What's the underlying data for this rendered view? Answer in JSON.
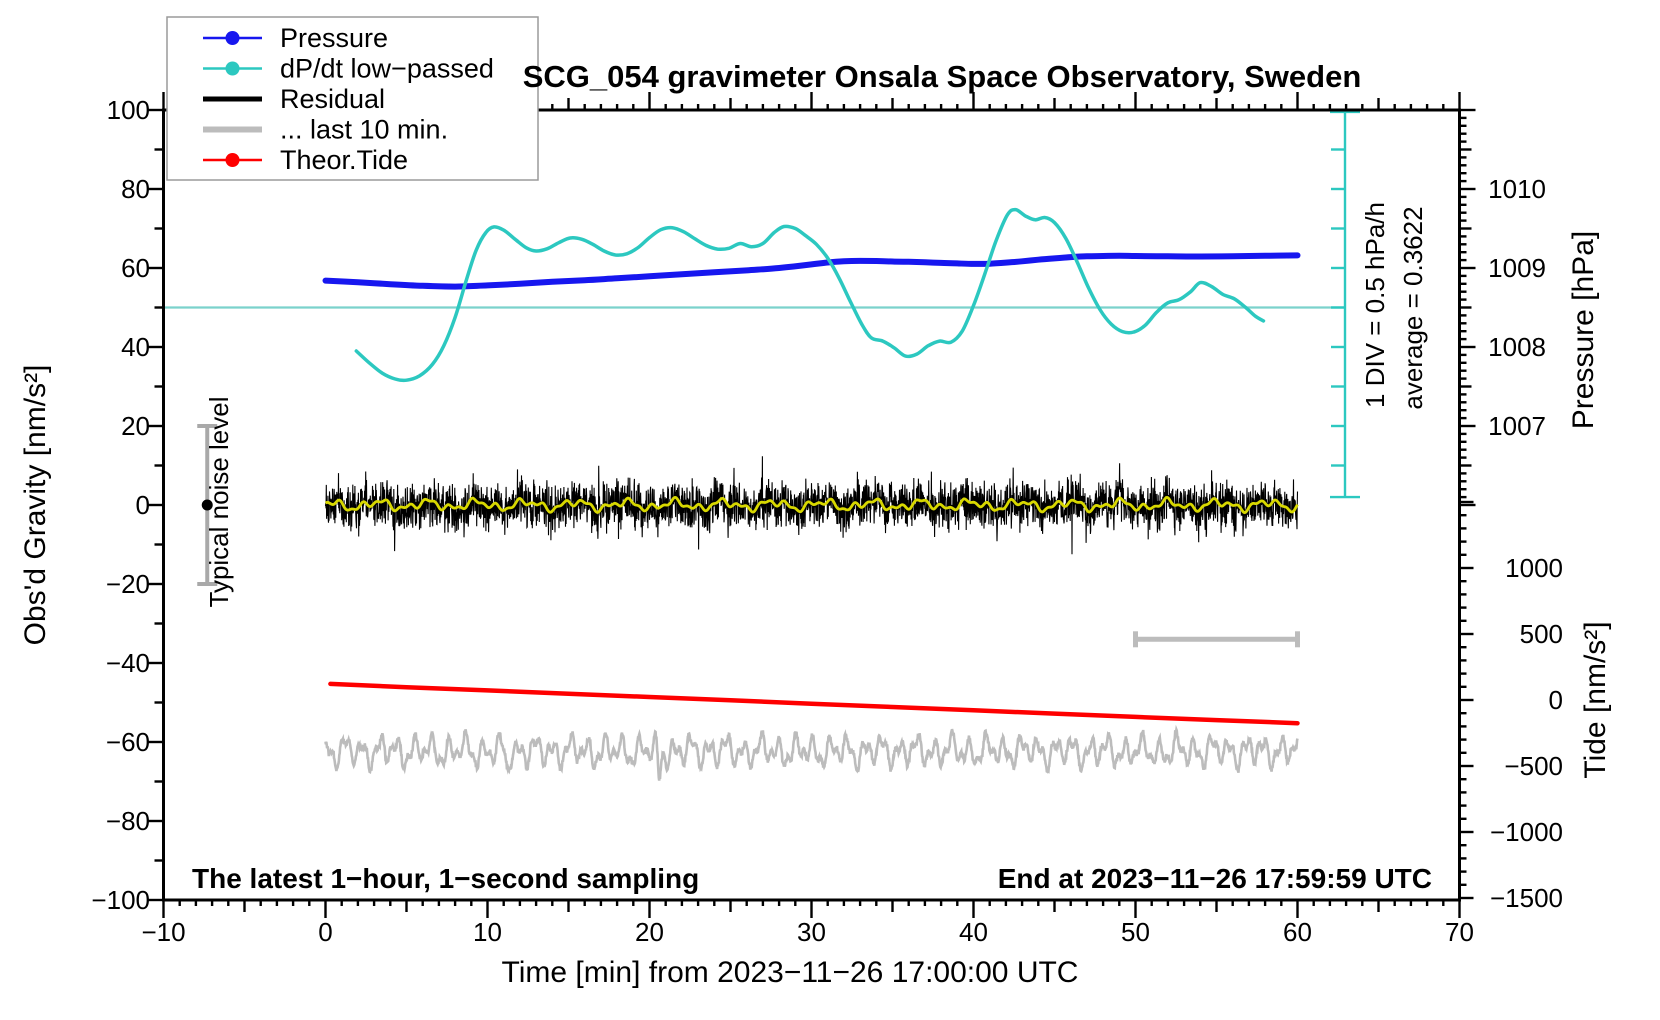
{
  "title": "SCG_054 gravimeter Onsala Space Observatory, Sweden",
  "notes": {
    "bottom_left": "The latest 1−hour, 1−second sampling",
    "bottom_right": "End at 2023−11−26 17:59:59 UTC"
  },
  "annotations": {
    "noise_label": "Typical noise level",
    "div_label": "1 DIV = 0.5 hPa/h",
    "avg_label": "average = 0.3622"
  },
  "legend": {
    "items": [
      {
        "label": "Pressure",
        "color": "#1717ef",
        "lw": 2.5,
        "dot": true
      },
      {
        "label": "dP/dt low−passed",
        "color": "#2cc8c0",
        "lw": 2.5,
        "dot": true
      },
      {
        "label": "Residual",
        "color": "#000000",
        "lw": 5,
        "dot": false
      },
      {
        "label": "... last 10 min.",
        "color": "#bcbcbc",
        "lw": 6,
        "dot": false
      },
      {
        "label": "Theor.Tide",
        "color": "#fe0000",
        "lw": 2.5,
        "dot": true
      }
    ]
  },
  "axes": {
    "x": {
      "label": "Time [min] from 2023−11−26 17:00:00 UTC",
      "min": -10,
      "max": 70,
      "minor": 1,
      "medium": 5,
      "major": 10,
      "tick_values": [
        -10,
        0,
        10,
        20,
        30,
        40,
        50,
        60,
        70
      ],
      "tick_labels": [
        "−10",
        "0",
        "10",
        "20",
        "30",
        "40",
        "50",
        "60",
        "70"
      ]
    },
    "y_left": {
      "label": "Obs'd Gravity [nm/s²]",
      "min": -100,
      "max": 100,
      "minor": 10,
      "major": 20,
      "tick_values": [
        -100,
        -80,
        -60,
        -40,
        -20,
        0,
        20,
        40,
        60,
        80,
        100
      ],
      "tick_labels": [
        "−100",
        "−80",
        "−60",
        "−40",
        "−20",
        "0",
        "20",
        "40",
        "60",
        "80",
        "100"
      ]
    },
    "pressure": {
      "label": "Pressure [hPa]",
      "min": 1006.0,
      "max": 1011.0,
      "minor": 0.1,
      "medium": 0.5,
      "major": 1.0,
      "tick_values": [
        1007,
        1008,
        1009,
        1010
      ],
      "tick_labels": [
        "1007",
        "1008",
        "1009",
        "1010"
      ]
    },
    "tide": {
      "label": "Tide [nm/s²]",
      "min": -1500,
      "max": 1500,
      "minor": 100,
      "major": 500,
      "tick_values": [
        1000,
        500,
        0,
        -500,
        -1000,
        -1500
      ],
      "tick_labels": [
        "1000",
        "500",
        "0",
        "−500",
        "−1000",
        "−1500"
      ]
    }
  },
  "chart_data": {
    "type": "line",
    "title": "SCG_054 gravimeter Onsala Space Observatory, Sweden",
    "xlabel": "Time [min] from 2023-11-26 17:00:00 UTC",
    "x_range": [
      -10,
      70
    ],
    "gravity_range": [
      -100,
      100
    ],
    "pressure_range_hpa": [
      1006,
      1011
    ],
    "tide_range": [
      -1500,
      1500
    ],
    "grid": false,
    "legend_position": "top-left",
    "dpdt_average_hpa_per_h": 0.3622,
    "dpdt_div_hpa_per_h": 0.5,
    "series": [
      {
        "name": "Pressure",
        "units": "hPa",
        "axis": "pressure",
        "color": "#1717ef",
        "lw": 6,
        "points": [
          [
            0,
            1008.84
          ],
          [
            2,
            1008.82
          ],
          [
            4,
            1008.795
          ],
          [
            6,
            1008.775
          ],
          [
            8,
            1008.765
          ],
          [
            10,
            1008.78
          ],
          [
            12,
            1008.8
          ],
          [
            14,
            1008.825
          ],
          [
            16,
            1008.845
          ],
          [
            18,
            1008.87
          ],
          [
            20,
            1008.895
          ],
          [
            22,
            1008.92
          ],
          [
            24,
            1008.945
          ],
          [
            26,
            1008.97
          ],
          [
            28,
            1009.0
          ],
          [
            30,
            1009.045
          ],
          [
            31,
            1009.07
          ],
          [
            32,
            1009.085
          ],
          [
            33,
            1009.09
          ],
          [
            34,
            1009.088
          ],
          [
            35,
            1009.082
          ],
          [
            36,
            1009.078
          ],
          [
            37,
            1009.072
          ],
          [
            38,
            1009.065
          ],
          [
            39,
            1009.058
          ],
          [
            40,
            1009.052
          ],
          [
            41,
            1009.055
          ],
          [
            42,
            1009.068
          ],
          [
            43,
            1009.085
          ],
          [
            44,
            1009.105
          ],
          [
            45,
            1009.122
          ],
          [
            46,
            1009.138
          ],
          [
            47,
            1009.148
          ],
          [
            48,
            1009.152
          ],
          [
            49,
            1009.155
          ],
          [
            50,
            1009.152
          ],
          [
            52,
            1009.148
          ],
          [
            54,
            1009.145
          ],
          [
            56,
            1009.15
          ],
          [
            58,
            1009.155
          ],
          [
            60,
            1009.16
          ]
        ]
      },
      {
        "name": "dP/dt low-passed",
        "units": "hPa/h",
        "axis": "dpdt",
        "color": "#2cc8c0",
        "lw": 3.5,
        "points": [
          [
            1.9,
            -0.188
          ],
          [
            2.7,
            -0.338
          ],
          [
            3.5,
            -0.468
          ],
          [
            4.3,
            -0.543
          ],
          [
            5.0,
            -0.558
          ],
          [
            5.8,
            -0.503
          ],
          [
            6.6,
            -0.358
          ],
          [
            7.3,
            -0.123
          ],
          [
            8.0,
            0.237
          ],
          [
            8.7,
            0.712
          ],
          [
            9.3,
            1.087
          ],
          [
            9.9,
            1.312
          ],
          [
            10.4,
            1.382
          ],
          [
            11.0,
            1.342
          ],
          [
            11.7,
            1.227
          ],
          [
            12.4,
            1.117
          ],
          [
            13.0,
            1.077
          ],
          [
            13.7,
            1.107
          ],
          [
            14.4,
            1.182
          ],
          [
            15.1,
            1.242
          ],
          [
            15.8,
            1.227
          ],
          [
            16.5,
            1.162
          ],
          [
            17.2,
            1.077
          ],
          [
            17.9,
            1.027
          ],
          [
            18.6,
            1.042
          ],
          [
            19.3,
            1.122
          ],
          [
            20.0,
            1.247
          ],
          [
            20.7,
            1.347
          ],
          [
            21.4,
            1.372
          ],
          [
            22.1,
            1.322
          ],
          [
            22.8,
            1.232
          ],
          [
            23.5,
            1.147
          ],
          [
            24.2,
            1.102
          ],
          [
            24.9,
            1.112
          ],
          [
            25.6,
            1.172
          ],
          [
            26.3,
            1.132
          ],
          [
            27.0,
            1.172
          ],
          [
            27.7,
            1.312
          ],
          [
            28.3,
            1.387
          ],
          [
            29.0,
            1.362
          ],
          [
            29.6,
            1.277
          ],
          [
            30.3,
            1.162
          ],
          [
            31.0,
            0.987
          ],
          [
            31.7,
            0.737
          ],
          [
            32.4,
            0.437
          ],
          [
            33.1,
            0.152
          ],
          [
            33.7,
            -0.023
          ],
          [
            34.4,
            -0.063
          ],
          [
            35.1,
            -0.148
          ],
          [
            35.8,
            -0.253
          ],
          [
            36.5,
            -0.228
          ],
          [
            37.2,
            -0.123
          ],
          [
            37.9,
            -0.063
          ],
          [
            38.6,
            -0.078
          ],
          [
            39.3,
            0.062
          ],
          [
            40.0,
            0.387
          ],
          [
            40.7,
            0.787
          ],
          [
            41.4,
            1.212
          ],
          [
            42.1,
            1.537
          ],
          [
            42.6,
            1.602
          ],
          [
            43.2,
            1.522
          ],
          [
            43.8,
            1.472
          ],
          [
            44.4,
            1.502
          ],
          [
            45.0,
            1.437
          ],
          [
            45.7,
            1.237
          ],
          [
            46.4,
            0.937
          ],
          [
            47.1,
            0.612
          ],
          [
            47.8,
            0.337
          ],
          [
            48.5,
            0.152
          ],
          [
            49.2,
            0.057
          ],
          [
            49.9,
            0.052
          ],
          [
            50.6,
            0.137
          ],
          [
            51.3,
            0.302
          ],
          [
            52.0,
            0.422
          ],
          [
            52.7,
            0.462
          ],
          [
            53.4,
            0.562
          ],
          [
            54.0,
            0.677
          ],
          [
            54.7,
            0.627
          ],
          [
            55.4,
            0.527
          ],
          [
            56.1,
            0.472
          ],
          [
            56.8,
            0.362
          ],
          [
            57.4,
            0.252
          ],
          [
            57.9,
            0.192
          ]
        ]
      },
      {
        "name": "Theor.Tide",
        "units": "nm/s2",
        "axis": "tide",
        "color": "#fe0000",
        "lw": 4.5,
        "points": [
          [
            0.3,
            122
          ],
          [
            5,
            97
          ],
          [
            10,
            73
          ],
          [
            15,
            48
          ],
          [
            20,
            23
          ],
          [
            25,
            -2
          ],
          [
            30,
            -28
          ],
          [
            35,
            -53
          ],
          [
            40,
            -78
          ],
          [
            45,
            -103
          ],
          [
            50,
            -128
          ],
          [
            55,
            -152
          ],
          [
            60,
            -176
          ]
        ]
      },
      {
        "name": "Residual",
        "units": "nm/s2",
        "axis": "gravity",
        "color": "#000000",
        "lw": 1.1,
        "noise_spec": {
          "center": 0,
          "sigma": 2.8,
          "spike_max": 14.5,
          "spike_prob": 0.008,
          "t_start": 0,
          "t_end": 60,
          "samples_per_min": 60,
          "seed": 1337
        }
      },
      {
        "name": "Residual low-passed (yellow)",
        "units": "nm/s2",
        "axis": "gravity",
        "color": "#d8d800",
        "lw": 2.8,
        "smooth_spec": {
          "amplitude": 1.6,
          "t_start": 0,
          "t_end": 60
        }
      },
      {
        "name": "... last 10 min.",
        "units": "nm/s2 (offset display)",
        "axis": "gravity",
        "color": "#bcbcbc",
        "lw": 2.6,
        "noise_spec": {
          "center": -62.3,
          "main_amp": 5.2,
          "noise_amp": 0.7,
          "deep_dips": [
            [
              11.2,
              -4.5
            ],
            [
              20.6,
              -7.0
            ]
          ],
          "t_start": 0,
          "t_end": 60,
          "seed": 77
        }
      }
    ],
    "markers": {
      "noise_bar": {
        "t": -7.3,
        "center_gravity": 0,
        "half_range": 20,
        "color": "#a9a9a9"
      },
      "last10_span_bar": {
        "t_start": 50,
        "t_end": 60,
        "gravity": -34,
        "color": "#bcbcbc"
      },
      "dpdt_avg_line": {
        "value_hpa_per_h": 0.3622,
        "gravity_equiv": 50,
        "color": "#7bd2cc"
      },
      "dpdt_scale_bar": {
        "t": 62.9,
        "gravity_top": 99.5,
        "gravity_bottom": 2.0,
        "tick_step_gravity": 10,
        "color": "#2cc8c0"
      }
    }
  }
}
